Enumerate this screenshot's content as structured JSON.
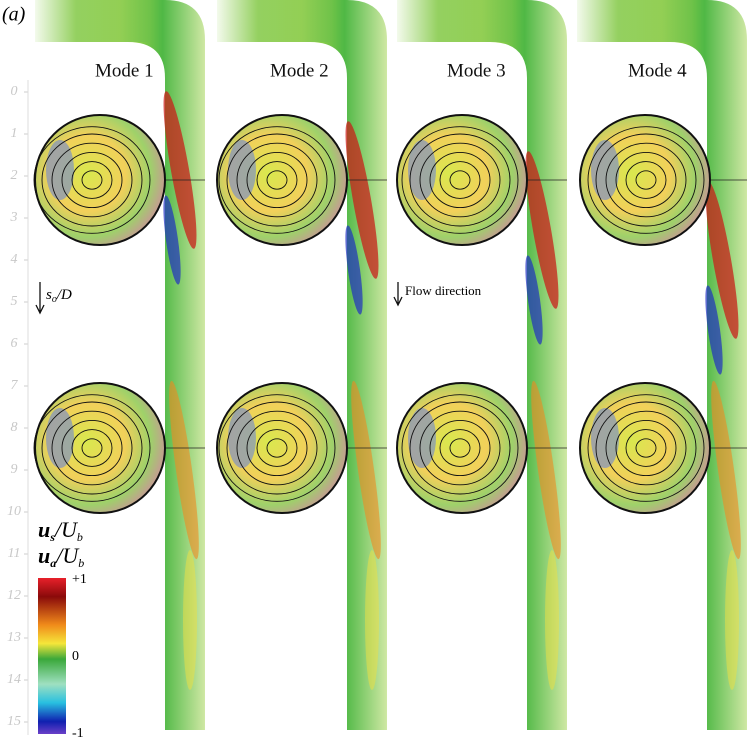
{
  "panel_label": "(a)",
  "modes": [
    "Mode 1",
    "Mode 2",
    "Mode 3",
    "Mode 4"
  ],
  "axis": {
    "ticks": [
      0,
      1,
      2,
      3,
      4,
      5,
      6,
      7,
      8,
      9,
      10,
      11,
      12,
      13,
      14,
      15
    ],
    "label": {
      "main": "s",
      "sub": "o",
      "rest": "/D"
    }
  },
  "flow_direction": "Flow direction",
  "colorbar": {
    "titles": [
      {
        "main": "u",
        "sub": "s",
        "rest": "/U",
        "sub2": "b"
      },
      {
        "main": "u",
        "sub": "a",
        "rest": "/U",
        "sub2": "b"
      }
    ],
    "ticks": [
      "+1",
      "0",
      "-1"
    ]
  }
}
